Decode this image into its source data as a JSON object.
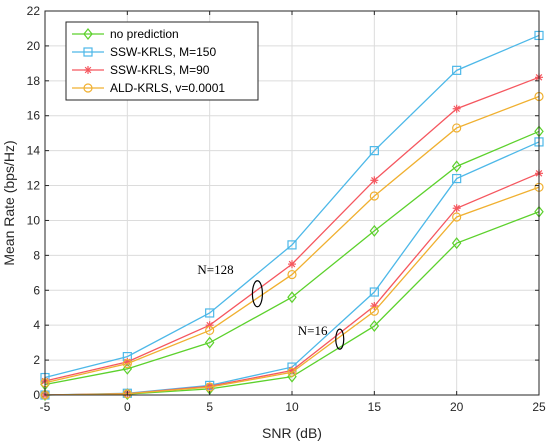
{
  "chart_data": {
    "type": "line",
    "xlabel": "SNR (dB)",
    "ylabel": "Mean Rate (bps/Hz)",
    "xlim": [
      -5,
      25
    ],
    "ylim": [
      0,
      22
    ],
    "xticks": [
      -5,
      0,
      5,
      10,
      15,
      20,
      25
    ],
    "yticks": [
      0,
      2,
      4,
      6,
      8,
      10,
      12,
      14,
      16,
      18,
      20,
      22
    ],
    "grid": true,
    "legend_position": "top-left",
    "x": [
      -5,
      0,
      5,
      10,
      15,
      20,
      25
    ],
    "series": [
      {
        "name": "no prediction",
        "color": "#5cd12c",
        "marker": "diamond",
        "group": "N=128",
        "values": [
          0.6,
          1.5,
          3.0,
          5.6,
          9.4,
          13.1,
          15.1
        ]
      },
      {
        "name": "SSW-KRLS, M=150",
        "color": "#4db8e8",
        "marker": "square",
        "group": "N=128",
        "values": [
          1.0,
          2.2,
          4.7,
          8.6,
          14.0,
          18.6,
          20.6
        ]
      },
      {
        "name": "SSW-KRLS, M=90",
        "color": "#f5575f",
        "marker": "asterisk",
        "group": "N=128",
        "values": [
          0.8,
          1.9,
          4.0,
          7.5,
          12.3,
          16.4,
          18.2
        ]
      },
      {
        "name": "ALD-KRLS, v=0.0001",
        "color": "#f0b030",
        "marker": "circle",
        "group": "N=128",
        "values": [
          0.7,
          1.8,
          3.7,
          6.9,
          11.4,
          15.3,
          17.1
        ]
      },
      {
        "name": "no prediction",
        "color": "#5cd12c",
        "marker": "diamond",
        "group": "N=16",
        "values": [
          0.0,
          0.05,
          0.35,
          1.05,
          3.95,
          8.7,
          10.5
        ]
      },
      {
        "name": "SSW-KRLS, M=150",
        "color": "#4db8e8",
        "marker": "square",
        "group": "N=16",
        "values": [
          0.0,
          0.1,
          0.55,
          1.6,
          5.9,
          12.4,
          14.5
        ]
      },
      {
        "name": "SSW-KRLS, M=90",
        "color": "#f5575f",
        "marker": "asterisk",
        "group": "N=16",
        "values": [
          0.0,
          0.08,
          0.5,
          1.4,
          5.1,
          10.7,
          12.7
        ]
      },
      {
        "name": "ALD-KRLS, v=0.0001",
        "color": "#f0b030",
        "marker": "circle",
        "group": "N=16",
        "values": [
          0.0,
          0.07,
          0.45,
          1.3,
          4.8,
          10.2,
          11.9
        ]
      }
    ],
    "legend": [
      {
        "label": "no prediction",
        "color": "#5cd12c",
        "marker": "diamond"
      },
      {
        "label": "SSW-KRLS, M=150",
        "color": "#4db8e8",
        "marker": "square"
      },
      {
        "label": "SSW-KRLS, M=90",
        "color": "#f5575f",
        "marker": "asterisk"
      },
      {
        "label": "ALD-KRLS, v=0.0001",
        "color": "#f0b030",
        "marker": "circle"
      }
    ],
    "annotations": [
      {
        "text": "N=128",
        "x": 7.9,
        "y": 5.8
      },
      {
        "text": "N=16",
        "x": 12.9,
        "y": 3.2
      }
    ]
  }
}
